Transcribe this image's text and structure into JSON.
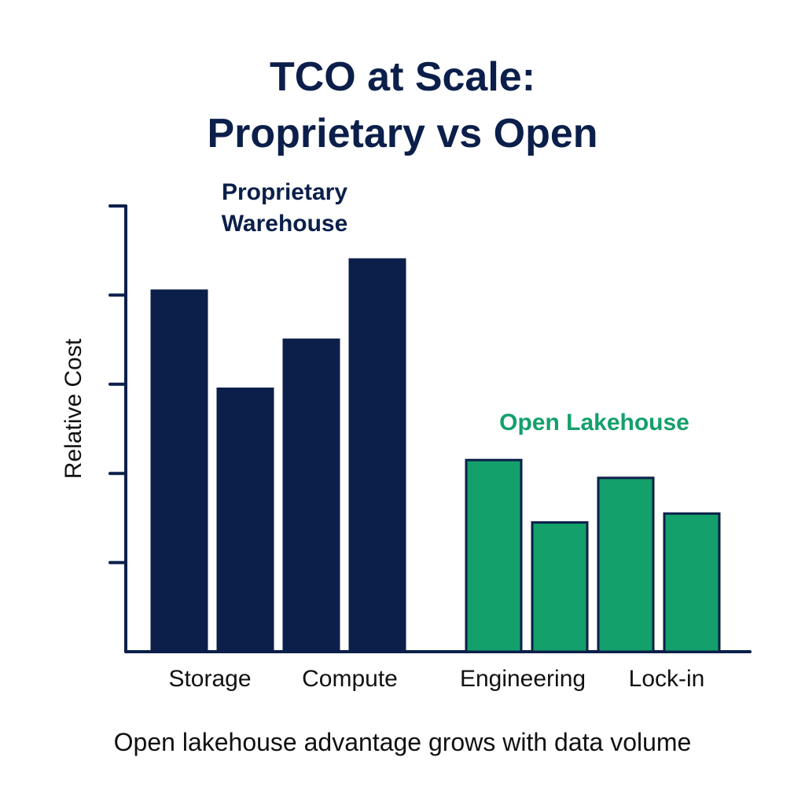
{
  "chart_data": {
    "type": "bar",
    "title": [
      "TCO at Scale:",
      "Proprietary vs Open"
    ],
    "ylabel": "Relative Cost",
    "xlabel": "",
    "ylim": [
      0,
      10
    ],
    "categories": [
      "Storage",
      "Compute",
      "Engineering",
      "Lock-in"
    ],
    "groups": [
      {
        "name": "Proprietary\nWarehouse",
        "color": "#0b1f4a",
        "values": [
          8.1,
          5.9,
          7.0,
          8.8
        ]
      },
      {
        "name": "Open Lakehouse",
        "color": "#13a06a",
        "values": [
          4.3,
          2.9,
          3.9,
          3.1
        ]
      }
    ],
    "grid": false,
    "caption": "Open lakehouse advantage grows with data volume"
  }
}
